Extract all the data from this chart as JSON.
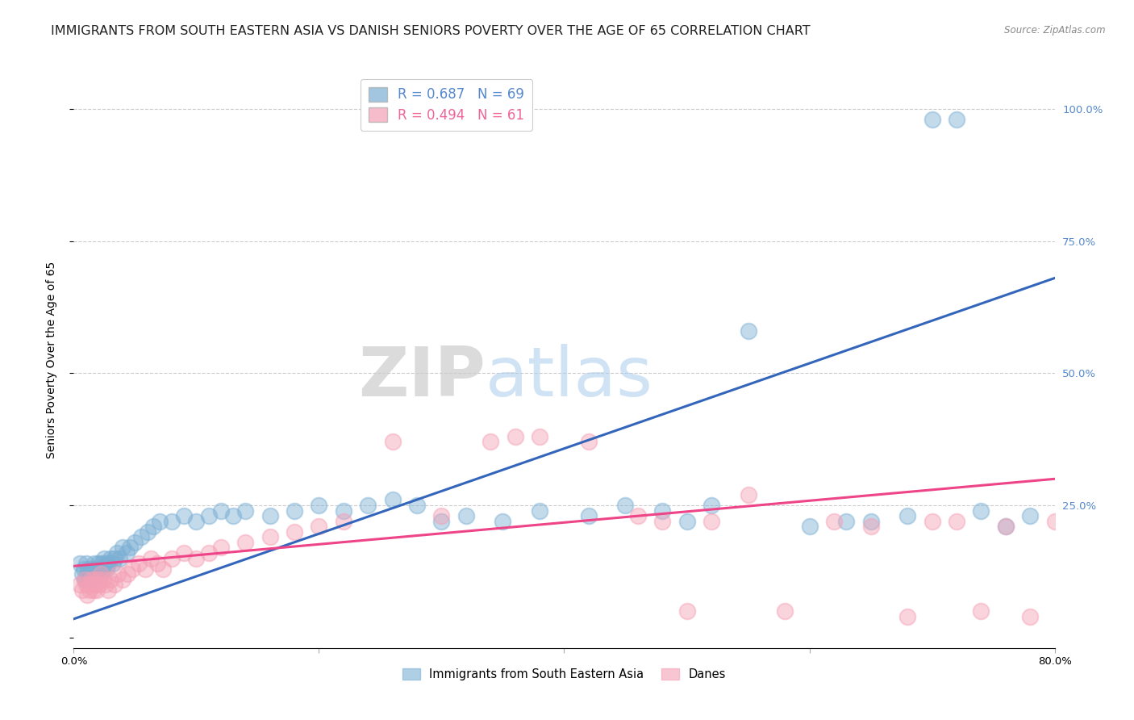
{
  "title": "IMMIGRANTS FROM SOUTH EASTERN ASIA VS DANISH SENIORS POVERTY OVER THE AGE OF 65 CORRELATION CHART",
  "source": "Source: ZipAtlas.com",
  "ylabel": "Seniors Poverty Over the Age of 65",
  "xlim": [
    0.0,
    0.8
  ],
  "ylim": [
    -0.02,
    1.07
  ],
  "xticks": [
    0.0,
    0.2,
    0.4,
    0.6,
    0.8
  ],
  "xticklabels": [
    "0.0%",
    "",
    "",
    "",
    "80.0%"
  ],
  "yticks": [
    0.0,
    0.25,
    0.5,
    0.75,
    1.0
  ],
  "yticklabels": [
    "",
    "25.0%",
    "50.0%",
    "75.0%",
    "100.0%"
  ],
  "blue_color": "#7bafd4",
  "pink_color": "#f4a0b5",
  "blue_line_color": "#3366bb",
  "pink_line_color": "#ee4488",
  "blue_R": 0.687,
  "blue_N": 69,
  "pink_R": 0.494,
  "pink_N": 61,
  "blue_line_x": [
    0.0,
    0.8
  ],
  "blue_line_y": [
    0.035,
    0.68
  ],
  "pink_line_x": [
    0.0,
    0.8
  ],
  "pink_line_y": [
    0.135,
    0.3
  ],
  "watermark_zip": "ZIP",
  "watermark_atlas": "atlas",
  "legend_label_blue": "Immigrants from South Eastern Asia",
  "legend_label_pink": "Danes",
  "blue_scatter_x": [
    0.005,
    0.007,
    0.008,
    0.009,
    0.01,
    0.011,
    0.012,
    0.013,
    0.014,
    0.015,
    0.016,
    0.017,
    0.018,
    0.019,
    0.02,
    0.021,
    0.022,
    0.023,
    0.024,
    0.025,
    0.026,
    0.027,
    0.028,
    0.03,
    0.032,
    0.033,
    0.035,
    0.037,
    0.04,
    0.043,
    0.046,
    0.05,
    0.055,
    0.06,
    0.065,
    0.07,
    0.08,
    0.09,
    0.1,
    0.11,
    0.12,
    0.13,
    0.14,
    0.16,
    0.18,
    0.2,
    0.22,
    0.24,
    0.26,
    0.28,
    0.3,
    0.32,
    0.35,
    0.38,
    0.42,
    0.45,
    0.48,
    0.5,
    0.52,
    0.55,
    0.6,
    0.63,
    0.65,
    0.68,
    0.7,
    0.72,
    0.74,
    0.76,
    0.78
  ],
  "blue_scatter_y": [
    0.14,
    0.12,
    0.13,
    0.11,
    0.14,
    0.12,
    0.13,
    0.11,
    0.12,
    0.13,
    0.12,
    0.14,
    0.13,
    0.12,
    0.14,
    0.13,
    0.12,
    0.14,
    0.13,
    0.15,
    0.14,
    0.13,
    0.14,
    0.15,
    0.14,
    0.15,
    0.16,
    0.15,
    0.17,
    0.16,
    0.17,
    0.18,
    0.19,
    0.2,
    0.21,
    0.22,
    0.22,
    0.23,
    0.22,
    0.23,
    0.24,
    0.23,
    0.24,
    0.23,
    0.24,
    0.25,
    0.24,
    0.25,
    0.26,
    0.25,
    0.22,
    0.23,
    0.22,
    0.24,
    0.23,
    0.25,
    0.24,
    0.22,
    0.25,
    0.58,
    0.21,
    0.22,
    0.22,
    0.23,
    0.98,
    0.98,
    0.24,
    0.21,
    0.23
  ],
  "pink_scatter_x": [
    0.005,
    0.007,
    0.009,
    0.01,
    0.011,
    0.012,
    0.013,
    0.014,
    0.015,
    0.016,
    0.017,
    0.018,
    0.019,
    0.02,
    0.021,
    0.022,
    0.024,
    0.026,
    0.028,
    0.03,
    0.033,
    0.036,
    0.04,
    0.044,
    0.048,
    0.053,
    0.058,
    0.063,
    0.068,
    0.073,
    0.08,
    0.09,
    0.1,
    0.11,
    0.12,
    0.14,
    0.16,
    0.18,
    0.2,
    0.22,
    0.26,
    0.3,
    0.34,
    0.38,
    0.42,
    0.46,
    0.48,
    0.5,
    0.52,
    0.55,
    0.58,
    0.62,
    0.65,
    0.68,
    0.7,
    0.72,
    0.74,
    0.76,
    0.78,
    0.8,
    0.36
  ],
  "pink_scatter_y": [
    0.1,
    0.09,
    0.11,
    0.1,
    0.08,
    0.1,
    0.09,
    0.11,
    0.1,
    0.09,
    0.11,
    0.1,
    0.09,
    0.11,
    0.1,
    0.12,
    0.11,
    0.1,
    0.09,
    0.11,
    0.1,
    0.12,
    0.11,
    0.12,
    0.13,
    0.14,
    0.13,
    0.15,
    0.14,
    0.13,
    0.15,
    0.16,
    0.15,
    0.16,
    0.17,
    0.18,
    0.19,
    0.2,
    0.21,
    0.22,
    0.37,
    0.23,
    0.37,
    0.38,
    0.37,
    0.23,
    0.22,
    0.05,
    0.22,
    0.27,
    0.05,
    0.22,
    0.21,
    0.04,
    0.22,
    0.22,
    0.05,
    0.21,
    0.04,
    0.22,
    0.38
  ],
  "background_color": "#ffffff",
  "grid_color": "#cccccc",
  "title_fontsize": 11.5,
  "axis_label_fontsize": 10,
  "tick_fontsize": 9.5,
  "right_ytick_color": "#5588cc",
  "legend_text_blue_color": "#5588cc",
  "legend_text_pink_color": "#ee6699"
}
